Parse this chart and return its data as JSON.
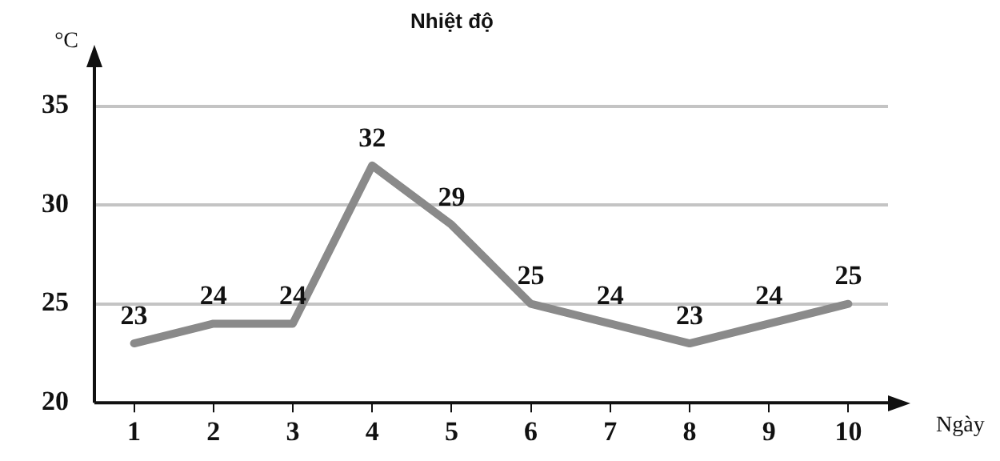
{
  "chart_data": {
    "type": "line",
    "title": "Nhiệt độ",
    "xlabel": "Ngày",
    "ylabel": "°C",
    "categories": [
      "1",
      "2",
      "3",
      "4",
      "5",
      "6",
      "7",
      "8",
      "9",
      "10"
    ],
    "series": [
      {
        "color": "#8a8a8a",
        "values": [
          23,
          24,
          24,
          32,
          29,
          25,
          24,
          23,
          24,
          25
        ]
      }
    ],
    "ylim": [
      20,
      37
    ],
    "yticks": [
      20,
      25,
      30,
      35
    ],
    "grid": "y",
    "legend": false,
    "marker": "none",
    "line_style": "solid",
    "data_labels": true
  }
}
